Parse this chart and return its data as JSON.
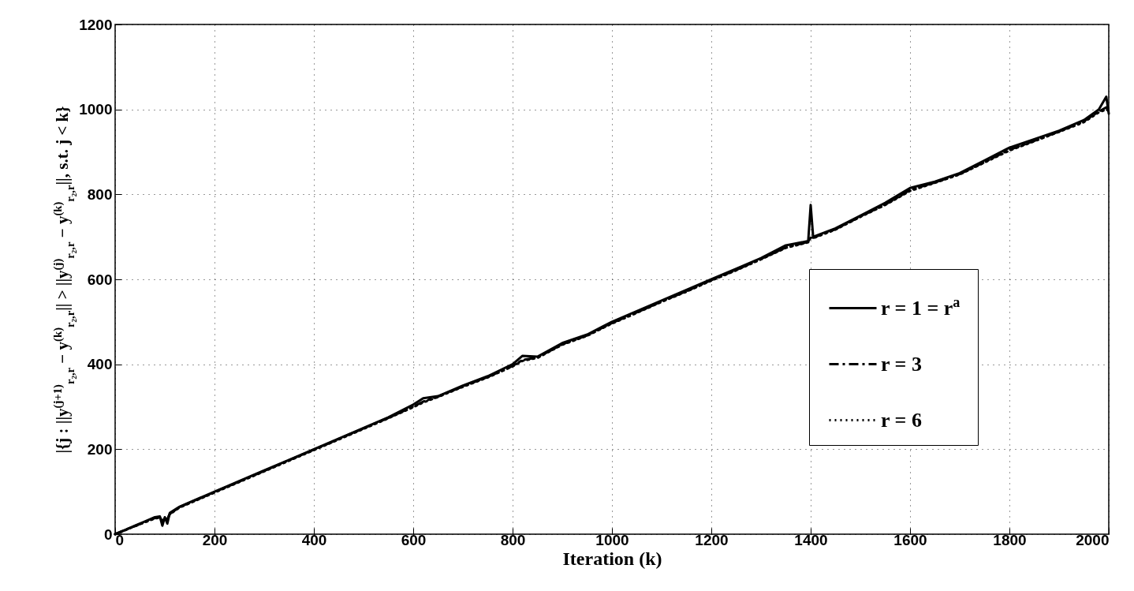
{
  "chart_data": {
    "type": "line",
    "xlabel": "Iteration (k)",
    "ylabel": "|{j : ||y$^{(j+1)}$$_{r₂,r}$ − y$^{(k)}$$_{r₂,r}$|| > ||y$^{(j)}$$_{r₂,r}$ − y$^{(k)}$$_{r₂,r}$||, s.t. j < k}",
    "x": [
      0,
      20,
      40,
      60,
      80,
      90,
      95,
      100,
      105,
      110,
      130,
      160,
      200,
      250,
      300,
      350,
      400,
      450,
      500,
      550,
      600,
      620,
      650,
      700,
      750,
      800,
      820,
      850,
      900,
      950,
      1000,
      1050,
      1100,
      1150,
      1200,
      1250,
      1300,
      1350,
      1395,
      1400,
      1405,
      1450,
      1500,
      1550,
      1600,
      1650,
      1700,
      1750,
      1800,
      1850,
      1900,
      1950,
      1980,
      1995,
      2000
    ],
    "series": [
      {
        "name": "r = 1 = r$^{a}$",
        "color": "#000000",
        "line_style": "solid",
        "values": [
          0,
          10,
          20,
          30,
          40,
          42,
          20,
          40,
          25,
          50,
          65,
          80,
          100,
          125,
          150,
          175,
          200,
          225,
          250,
          275,
          305,
          320,
          325,
          350,
          372,
          400,
          420,
          418,
          450,
          470,
          500,
          525,
          550,
          575,
          600,
          625,
          650,
          680,
          690,
          775,
          700,
          720,
          750,
          780,
          815,
          830,
          850,
          880,
          910,
          930,
          950,
          975,
          1000,
          1030,
          990
        ]
      },
      {
        "name": "r = 3",
        "color": "#000000",
        "line_style": "dashdot",
        "values": [
          0,
          10,
          19,
          29,
          38,
          40,
          30,
          38,
          35,
          48,
          64,
          79,
          99,
          124,
          149,
          174,
          199,
          224,
          249,
          274,
          300,
          312,
          324,
          348,
          370,
          396,
          410,
          416,
          447,
          468,
          497,
          522,
          548,
          572,
          598,
          622,
          648,
          675,
          688,
          700,
          698,
          718,
          748,
          776,
          810,
          828,
          848,
          876,
          905,
          926,
          948,
          972,
          995,
          1005,
          995
        ]
      },
      {
        "name": "r = 6",
        "color": "#000000",
        "line_style": "dotted",
        "values": [
          0,
          9,
          19,
          28,
          37,
          39,
          32,
          37,
          36,
          47,
          63,
          78,
          98,
          123,
          148,
          173,
          198,
          223,
          248,
          273,
          299,
          310,
          323,
          347,
          369,
          395,
          408,
          415,
          446,
          467,
          496,
          521,
          547,
          571,
          597,
          621,
          647,
          674,
          687,
          698,
          697,
          717,
          747,
          775,
          808,
          827,
          847,
          875,
          903,
          925,
          947,
          970,
          993,
          1000,
          996
        ]
      }
    ],
    "xlim": [
      0,
      2000
    ],
    "xticks": [
      0,
      200,
      400,
      600,
      800,
      1000,
      1200,
      1400,
      1600,
      1800,
      2000
    ],
    "ylim": [
      0,
      1200
    ],
    "yticks": [
      0,
      200,
      400,
      600,
      800,
      1000,
      1200
    ],
    "grid": true,
    "legend": "right"
  }
}
